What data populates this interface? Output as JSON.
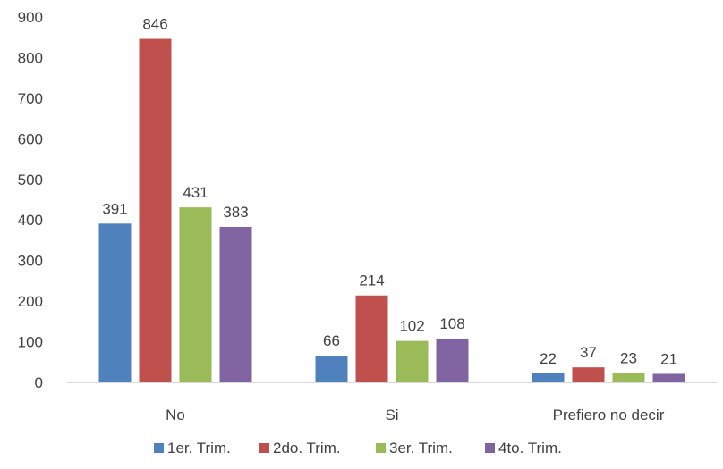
{
  "chart_data": {
    "type": "bar",
    "title": "",
    "xlabel": "",
    "ylabel": "",
    "categories": [
      "No",
      "Si",
      "Prefiero no decir"
    ],
    "series": [
      {
        "name": "1er. Trim.",
        "color": "#4F81BD",
        "values": [
          391,
          66,
          22
        ]
      },
      {
        "name": "2do. Trim.",
        "color": "#C0504D",
        "values": [
          846,
          214,
          37
        ]
      },
      {
        "name": "3er. Trim.",
        "color": "#9BBB59",
        "values": [
          431,
          102,
          23
        ]
      },
      {
        "name": "4to. Trim.",
        "color": "#8064A2",
        "values": [
          383,
          108,
          21
        ]
      }
    ],
    "ylim": [
      0,
      900
    ],
    "yticks": [
      0,
      100,
      200,
      300,
      400,
      500,
      600,
      700,
      800,
      900
    ],
    "gridlines": false,
    "data_labels": true,
    "legend_position": "bottom"
  }
}
